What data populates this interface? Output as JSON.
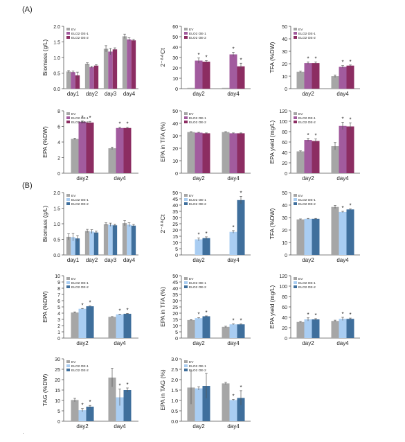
{
  "figure": {
    "panel_labels": [
      "(A)",
      "(B)"
    ],
    "footnote": "·"
  },
  "colors": {
    "A": [
      "#a6a6a6",
      "#a25b9e",
      "#8c2d62"
    ],
    "B": [
      "#a6a6a6",
      "#a9cdf2",
      "#3f6f9c"
    ],
    "axis": "#555555",
    "text": "#222222",
    "error": "#555555"
  },
  "chart_data": [
    {
      "id": "A1",
      "type": "bar",
      "panel": "A",
      "categories": [
        "day1",
        "day2",
        "day3",
        "day4"
      ],
      "ylabel": "Biomass (g/L)",
      "ylim": [
        0,
        2.0
      ],
      "yticks": [
        0,
        0.5,
        1.0,
        1.5,
        2.0
      ],
      "yfmt": 1,
      "series": [
        {
          "name": "EV",
          "values": [
            0.55,
            0.8,
            1.28,
            1.68
          ],
          "err": [
            0.03,
            0.03,
            0.1,
            0.07
          ]
        },
        {
          "name": "ELO2 OE-1",
          "values": [
            0.53,
            0.69,
            1.19,
            1.58
          ],
          "err": [
            0.04,
            0.03,
            0.1,
            0.05
          ]
        },
        {
          "name": "ELO2 OE-2",
          "values": [
            0.43,
            0.74,
            1.26,
            1.55
          ],
          "err": [
            0.1,
            0.03,
            0.05,
            0.03
          ]
        }
      ],
      "stars": [],
      "legend": [
        "EV",
        "ELO2 OE-1",
        "ELO2 OE-2"
      ]
    },
    {
      "id": "A2",
      "type": "bar",
      "panel": "A",
      "categories": [
        "day2",
        "day4"
      ],
      "ylabel": "2⁻ᐞᐞCt",
      "ylim": [
        0,
        60
      ],
      "yticks": [
        0,
        10,
        20,
        30,
        40,
        50,
        60
      ],
      "yfmt": 0,
      "series": [
        {
          "name": "EV",
          "values": [
            0.8,
            0.8
          ],
          "err": [
            0,
            0
          ]
        },
        {
          "name": "ELO2 OE-1",
          "values": [
            27,
            33
          ],
          "err": [
            2.5,
            2
          ]
        },
        {
          "name": "ELO2 OE-2",
          "values": [
            26,
            21.5
          ],
          "err": [
            1,
            3
          ]
        }
      ],
      "stars": [
        [
          0,
          1
        ],
        [
          0,
          2
        ],
        [
          1,
          1
        ],
        [
          1,
          2
        ]
      ],
      "legend": [
        "EV",
        "ELO2 OE-1",
        "ELO2 OE-2"
      ]
    },
    {
      "id": "A3",
      "type": "bar",
      "panel": "A",
      "categories": [
        "day2",
        "day4"
      ],
      "ylabel": "TFA (%DW)",
      "ylim": [
        0,
        50
      ],
      "yticks": [
        0,
        10,
        20,
        30,
        40,
        50
      ],
      "yfmt": 0,
      "series": [
        {
          "name": "EV",
          "values": [
            13.5,
            10
          ],
          "err": [
            0.5,
            1
          ]
        },
        {
          "name": "ELO2 OE-1",
          "values": [
            20.5,
            17.5
          ],
          "err": [
            1,
            1
          ]
        },
        {
          "name": "ELO2 OE-2",
          "values": [
            20.5,
            18.5
          ],
          "err": [
            1,
            0.5
          ]
        }
      ],
      "stars": [
        [
          0,
          1
        ],
        [
          0,
          2
        ],
        [
          1,
          1
        ],
        [
          1,
          2
        ]
      ],
      "legend": [
        "EV",
        "ELO2 OE-1",
        "ELO2 OE-2"
      ]
    },
    {
      "id": "A4",
      "type": "bar",
      "panel": "A",
      "categories": [
        "day2",
        "day4"
      ],
      "ylabel": "EPA (%DW)",
      "ylim": [
        0,
        8
      ],
      "yticks": [
        0,
        2,
        4,
        6,
        8
      ],
      "yfmt": 0,
      "series": [
        {
          "name": "EV",
          "values": [
            4.4,
            3.2
          ],
          "err": [
            0.1,
            0.15
          ]
        },
        {
          "name": "ELO2 OE-1",
          "values": [
            6.6,
            5.8
          ],
          "err": [
            0.1,
            0.1
          ]
        },
        {
          "name": "ELO2 OE-2",
          "values": [
            6.5,
            5.8
          ],
          "err": [
            0.15,
            0.1
          ]
        }
      ],
      "stars": [
        [
          0,
          1
        ],
        [
          0,
          2
        ],
        [
          1,
          1
        ],
        [
          1,
          2
        ]
      ],
      "legend": [
        "EV",
        "ELO2 OE-1",
        "ELO2 OE-2"
      ]
    },
    {
      "id": "A5",
      "type": "bar",
      "panel": "A",
      "categories": [
        "day2",
        "day4"
      ],
      "ylabel": "EPA in TFA (%)",
      "ylim": [
        0,
        50
      ],
      "yticks": [
        0,
        10,
        20,
        30,
        40,
        50
      ],
      "yfmt": 0,
      "series": [
        {
          "name": "EV",
          "values": [
            33,
            33
          ],
          "err": [
            0.3,
            0.3
          ]
        },
        {
          "name": "ELO2 OE-1",
          "values": [
            32.5,
            32
          ],
          "err": [
            0.3,
            0.3
          ]
        },
        {
          "name": "ELO2 OE-2",
          "values": [
            32,
            32
          ],
          "err": [
            0.3,
            0.3
          ]
        }
      ],
      "stars": [],
      "legend": [
        "EV",
        "ELO2 OE-1",
        "ELO2 OE-2"
      ]
    },
    {
      "id": "A6",
      "type": "bar",
      "panel": "A",
      "categories": [
        "day2",
        "day4"
      ],
      "ylabel": "EPA yield (mg/L)",
      "ylim": [
        0,
        120
      ],
      "yticks": [
        0,
        20,
        40,
        60,
        80,
        100,
        120
      ],
      "yfmt": 0,
      "series": [
        {
          "name": "EV",
          "values": [
            42,
            52
          ],
          "err": [
            1,
            7
          ]
        },
        {
          "name": "ELO2 OE-1",
          "values": [
            64,
            91
          ],
          "err": [
            3,
            7
          ]
        },
        {
          "name": "ELO2 OE-2",
          "values": [
            62,
            90
          ],
          "err": [
            4,
            7
          ]
        }
      ],
      "stars": [
        [
          0,
          1
        ],
        [
          0,
          2
        ],
        [
          1,
          1
        ],
        [
          1,
          2
        ]
      ],
      "legend": [
        "EV",
        "ELO2 OE-1",
        "ELO2 OE-2"
      ]
    },
    {
      "id": "B1",
      "type": "bar",
      "panel": "B",
      "categories": [
        "day1",
        "day2",
        "day3",
        "day4"
      ],
      "ylabel": "Biomass (g/L)",
      "ylim": [
        0,
        2.0
      ],
      "yticks": [
        0,
        0.5,
        1.0,
        1.5,
        2.0
      ],
      "yfmt": 1,
      "series": [
        {
          "name": "EV",
          "values": [
            0.58,
            0.77,
            0.99,
            1.02
          ],
          "err": [
            0.1,
            0.05,
            0.04,
            0.08
          ]
        },
        {
          "name": "ELO2 OE-1",
          "values": [
            0.57,
            0.75,
            0.97,
            0.97
          ],
          "err": [
            0.12,
            0.06,
            0.05,
            0.06
          ]
        },
        {
          "name": "ELO2 OE-2",
          "values": [
            0.53,
            0.72,
            0.95,
            0.94
          ],
          "err": [
            0.09,
            0.05,
            0.04,
            0.04
          ]
        }
      ],
      "stars": [],
      "legend": [
        "EV",
        "ELO2 OE-1",
        "ELO2 OE-2"
      ]
    },
    {
      "id": "B2",
      "type": "bar",
      "panel": "B",
      "categories": [
        "day2",
        "day4"
      ],
      "ylabel": "2⁻ᐞᐞCt",
      "ylim": [
        0,
        60
      ],
      "yticks": [
        0,
        5,
        10,
        15,
        20,
        25,
        30,
        35,
        40,
        45,
        50
      ],
      "yfmt": 0,
      "ymax": 50,
      "series": [
        {
          "name": "EV",
          "values": [
            0.4,
            0.4
          ],
          "err": [
            0,
            0
          ]
        },
        {
          "name": "ELO2 OE-1",
          "values": [
            12.5,
            18.5
          ],
          "err": [
            1.2,
            1
          ]
        },
        {
          "name": "ELO2 OE-2",
          "values": [
            13.5,
            44
          ],
          "err": [
            1,
            3
          ]
        }
      ],
      "stars": [
        [
          0,
          1
        ],
        [
          0,
          2
        ],
        [
          1,
          1
        ],
        [
          1,
          2
        ]
      ],
      "legend": [
        "EV",
        "ELO2 OE-1",
        "ELO2 OE-2"
      ]
    },
    {
      "id": "B3",
      "type": "bar",
      "panel": "B",
      "categories": [
        "day2",
        "day4"
      ],
      "ylabel": "TFA (%DW)",
      "ylim": [
        0,
        50
      ],
      "yticks": [
        0,
        10,
        20,
        30,
        40,
        50
      ],
      "yfmt": 0,
      "series": [
        {
          "name": "EV",
          "values": [
            28.5,
            38.5
          ],
          "err": [
            0.4,
            1.2
          ]
        },
        {
          "name": "ELO2 OE-1",
          "values": [
            29,
            34.5
          ],
          "err": [
            0.3,
            0.5
          ]
        },
        {
          "name": "ELO2 OE-2",
          "values": [
            29,
            36.5
          ],
          "err": [
            0.3,
            0.4
          ]
        }
      ],
      "stars": [
        [
          1,
          1
        ],
        [
          1,
          2
        ]
      ],
      "legend": [
        "EV",
        "ELO2 OE-1",
        "ELO2 OE-2"
      ]
    },
    {
      "id": "B4",
      "type": "bar",
      "panel": "B",
      "categories": [
        "day2",
        "day4"
      ],
      "ylabel": "EPA (%DW)",
      "ylim": [
        0,
        10
      ],
      "yticks": [
        0,
        1,
        2,
        3,
        4,
        5,
        6,
        7,
        8,
        9,
        10
      ],
      "yfmt": 0,
      "series": [
        {
          "name": "EV",
          "values": [
            4.1,
            3.4
          ],
          "err": [
            0.1,
            0.05
          ]
        },
        {
          "name": "ELO2 OE-1",
          "values": [
            4.7,
            3.8
          ],
          "err": [
            0.05,
            0.05
          ]
        },
        {
          "name": "ELO2 OE-2",
          "values": [
            5.1,
            3.9
          ],
          "err": [
            0.05,
            0.05
          ]
        }
      ],
      "stars": [
        [
          0,
          1
        ],
        [
          0,
          2
        ],
        [
          1,
          1
        ],
        [
          1,
          2
        ]
      ],
      "legend": [
        "EV",
        "ELO2 OE-1",
        "ELO2 OE-2"
      ]
    },
    {
      "id": "B5",
      "type": "bar",
      "panel": "B",
      "categories": [
        "day2",
        "day4"
      ],
      "ylabel": "EPA in TFA (%)",
      "ylim": [
        0,
        50
      ],
      "yticks": [
        0,
        5,
        10,
        15,
        20,
        25,
        30,
        35,
        40,
        45,
        50
      ],
      "yfmt": 0,
      "series": [
        {
          "name": "EV",
          "values": [
            14.5,
            9
          ],
          "err": [
            0.3,
            0.5
          ]
        },
        {
          "name": "ELO2 OE-1",
          "values": [
            16,
            11
          ],
          "err": [
            0.3,
            0.4
          ]
        },
        {
          "name": "ELO2 OE-2",
          "values": [
            17.5,
            11
          ],
          "err": [
            0.3,
            0.3
          ]
        }
      ],
      "stars": [
        [
          0,
          1
        ],
        [
          0,
          2
        ],
        [
          1,
          1
        ],
        [
          1,
          2
        ]
      ],
      "legend": [
        "EV",
        "ELO2 OE-1",
        "ELO2 OE-2"
      ]
    },
    {
      "id": "B6",
      "type": "bar",
      "panel": "B",
      "categories": [
        "day2",
        "day4"
      ],
      "ylabel": "EPA yield (mg/L)",
      "ylim": [
        0,
        120
      ],
      "yticks": [
        0,
        20,
        40,
        60,
        80,
        100,
        120
      ],
      "yfmt": 0,
      "series": [
        {
          "name": "EV",
          "values": [
            31,
            33
          ],
          "err": [
            1,
            1.5
          ]
        },
        {
          "name": "ELO2 OE-1",
          "values": [
            36,
            37
          ],
          "err": [
            3,
            3
          ]
        },
        {
          "name": "ELO2 OE-2",
          "values": [
            36,
            37
          ],
          "err": [
            1.5,
            1.5
          ]
        }
      ],
      "stars": [
        [
          0,
          1
        ],
        [
          0,
          2
        ],
        [
          1,
          1
        ],
        [
          1,
          2
        ]
      ],
      "legend": [
        "EV",
        "ELO2 OE-1",
        "ELO2 OE-2"
      ]
    },
    {
      "id": "B7",
      "type": "bar",
      "panel": "B",
      "categories": [
        "day2",
        "day4"
      ],
      "ylabel": "TAG (%DW)",
      "ylim": [
        0,
        30
      ],
      "yticks": [
        0,
        5,
        10,
        15,
        20,
        25,
        30
      ],
      "yfmt": 0,
      "series": [
        {
          "name": "EV",
          "values": [
            10.2,
            21
          ],
          "err": [
            0.8,
            4.5
          ]
        },
        {
          "name": "ELO2 OE-1",
          "values": [
            5.3,
            11.5
          ],
          "err": [
            0.8,
            4
          ]
        },
        {
          "name": "ELO2 OE-2",
          "values": [
            7,
            15
          ],
          "err": [
            0.6,
            1
          ]
        }
      ],
      "stars": [
        [
          0,
          1
        ],
        [
          0,
          2
        ],
        [
          1,
          1
        ],
        [
          1,
          2
        ]
      ],
      "legend": [
        "EV",
        "ELO2 OE-1",
        "ELO2 OE-2"
      ]
    },
    {
      "id": "B8",
      "type": "bar",
      "panel": "B",
      "categories": [
        "day2",
        "day4"
      ],
      "ylabel": "EPA in TAG (%)",
      "ylim": [
        0,
        3.0
      ],
      "yticks": [
        0,
        0.5,
        1.0,
        1.5,
        2.0,
        2.5,
        3.0
      ],
      "yfmt": 1,
      "series": [
        {
          "name": "EV",
          "values": [
            1.62,
            1.82
          ],
          "err": [
            0.8,
            0.05
          ]
        },
        {
          "name": "ELO2 OE-1",
          "values": [
            1.58,
            1.02
          ],
          "err": [
            0.08,
            0.03
          ]
        },
        {
          "name": "ELO2 OE-2",
          "values": [
            1.7,
            1.12
          ],
          "err": [
            0.6,
            0.35
          ]
        }
      ],
      "stars": [
        [
          1,
          1
        ],
        [
          1,
          2
        ]
      ],
      "legend": [
        "EV",
        "ELO2 OE-1",
        "ELO2 OE-2"
      ]
    }
  ]
}
